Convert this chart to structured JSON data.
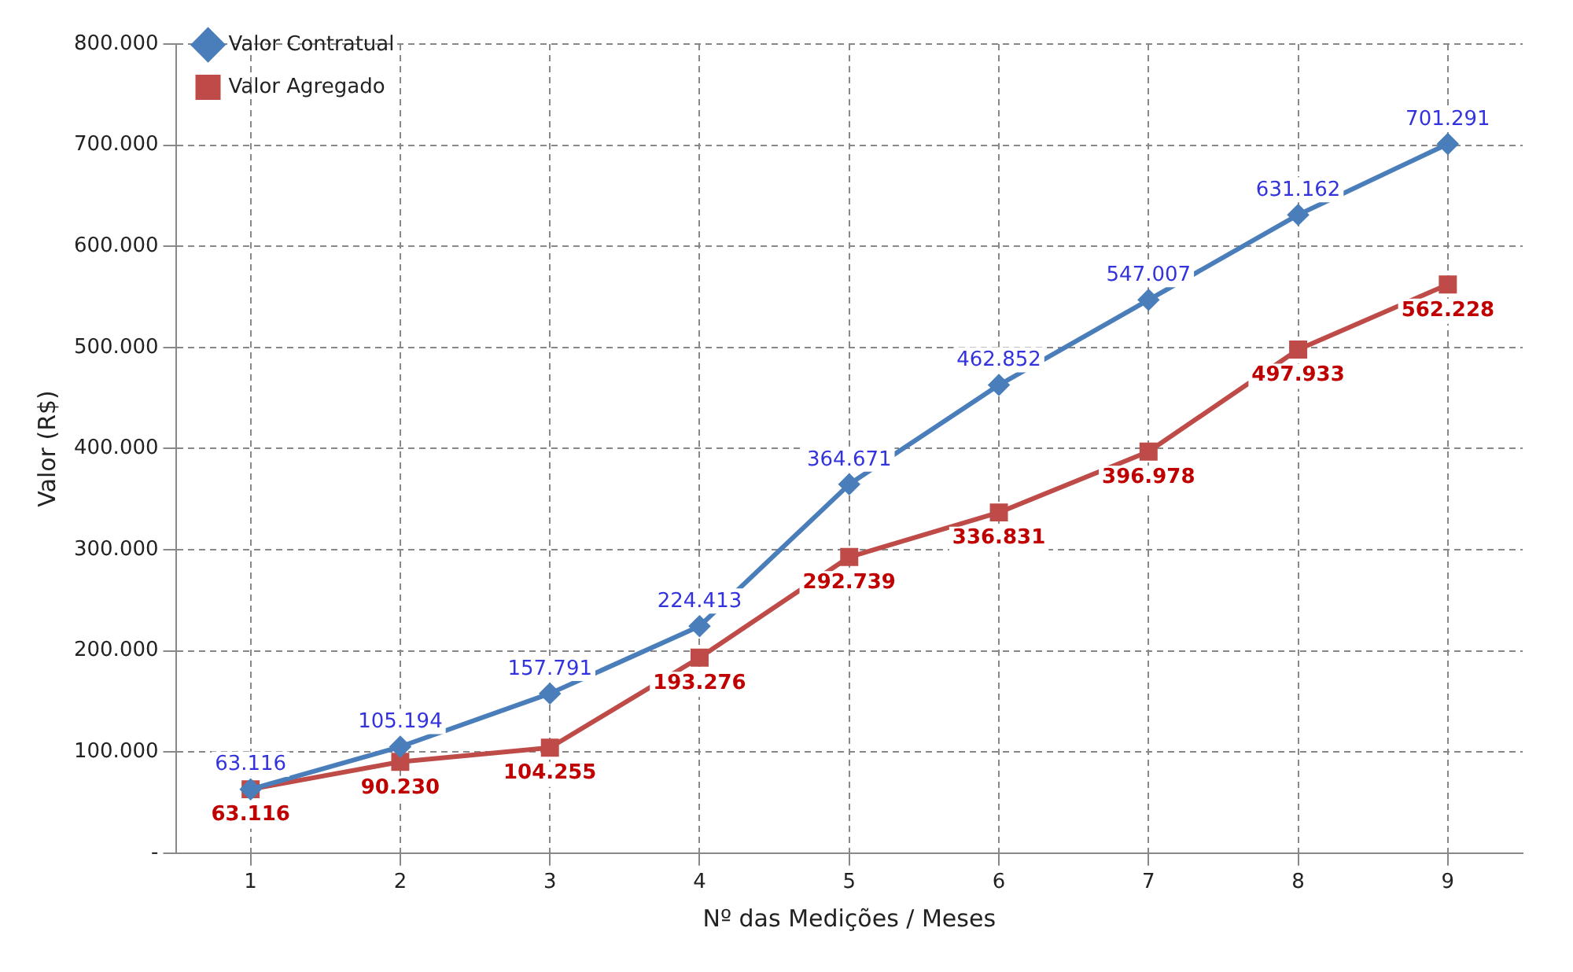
{
  "chart_data": {
    "type": "line",
    "xlabel": "Nº das Medições / Meses",
    "ylabel": "Valor (R$)",
    "categories": [
      "1",
      "2",
      "3",
      "4",
      "5",
      "6",
      "7",
      "8",
      "9"
    ],
    "series": [
      {
        "name": "Valor Contratual",
        "color": "#4a7ebb",
        "marker": "diamond",
        "values": [
          63116,
          105194,
          157791,
          224413,
          364671,
          462852,
          547007,
          631162,
          701291
        ],
        "value_labels": [
          "63.116",
          "105.194",
          "157.791",
          "224.413",
          "364.671",
          "462.852",
          "547.007",
          "631.162",
          "701.291"
        ]
      },
      {
        "name": "Valor Agregado",
        "color": "#be4b48",
        "marker": "square",
        "values": [
          63116,
          90230,
          104255,
          193276,
          292739,
          336831,
          396978,
          497933,
          562228
        ],
        "value_labels": [
          "63.116",
          "90.230",
          "104.255",
          "193.276",
          "292.739",
          "336.831",
          "396.978",
          "497.933",
          "562.228"
        ]
      }
    ],
    "ylim": [
      0,
      800000
    ],
    "yticks": [
      {
        "value": 0,
        "label": "-"
      },
      {
        "value": 100000,
        "label": "100.000"
      },
      {
        "value": 200000,
        "label": "200.000"
      },
      {
        "value": 300000,
        "label": "300.000"
      },
      {
        "value": 400000,
        "label": "400.000"
      },
      {
        "value": 500000,
        "label": "500.000"
      },
      {
        "value": 600000,
        "label": "600.000"
      },
      {
        "value": 700000,
        "label": "700.000"
      },
      {
        "value": 800000,
        "label": "800.000"
      }
    ],
    "grid": true,
    "legend": "top left",
    "line_style": "solid"
  }
}
